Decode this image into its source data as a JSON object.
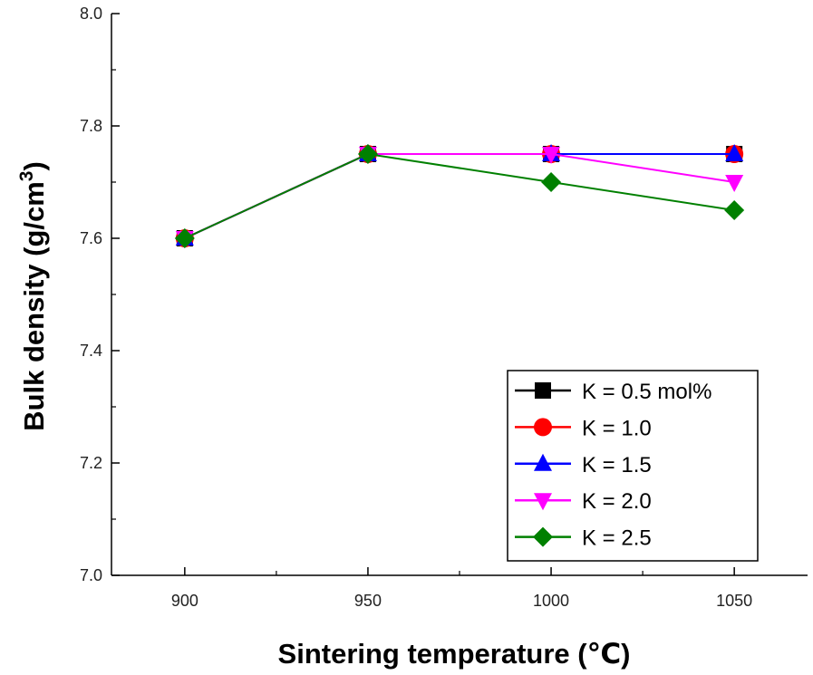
{
  "chart_data": {
    "type": "line",
    "title": "",
    "xlabel": "Sintering temperature (℃)",
    "ylabel_main": "Bulk density (g/cm",
    "ylabel_sup": "3",
    "ylabel_close": ")",
    "x": [
      900,
      950,
      1000,
      1050
    ],
    "xlim": [
      880,
      1070
    ],
    "ylim": [
      7.0,
      8.0
    ],
    "x_ticks": [
      900,
      950,
      1000,
      1050
    ],
    "x_tick_labels": [
      "900",
      "950",
      "1000",
      "1050"
    ],
    "x_minor_ticks": [
      925,
      975,
      1025
    ],
    "y_ticks": [
      7.0,
      7.2,
      7.4,
      7.6,
      7.8,
      8.0
    ],
    "y_tick_labels": [
      "7.0",
      "7.2",
      "7.4",
      "7.6",
      "7.8",
      "8.0"
    ],
    "y_minor_ticks": [
      7.1,
      7.3,
      7.5,
      7.7,
      7.9
    ],
    "grid": false,
    "legend_position": "bottom-right",
    "series": [
      {
        "name": "K = 0.5 mol%",
        "color": "#000000",
        "marker": "square",
        "values": [
          7.6,
          7.75,
          7.75,
          7.75
        ]
      },
      {
        "name": "K = 1.0",
        "color": "#ff0000",
        "marker": "circle",
        "values": [
          7.6,
          7.75,
          7.75,
          7.75
        ]
      },
      {
        "name": "K = 1.5",
        "color": "#0000ff",
        "marker": "triangle-up",
        "values": [
          7.6,
          7.75,
          7.75,
          7.75
        ]
      },
      {
        "name": "K = 2.0",
        "color": "#ff00ff",
        "marker": "triangle-down",
        "values": [
          7.6,
          7.75,
          7.75,
          7.7
        ]
      },
      {
        "name": "K = 2.5",
        "color": "#008000",
        "marker": "diamond",
        "values": [
          7.6,
          7.75,
          7.7,
          7.65
        ]
      }
    ]
  }
}
